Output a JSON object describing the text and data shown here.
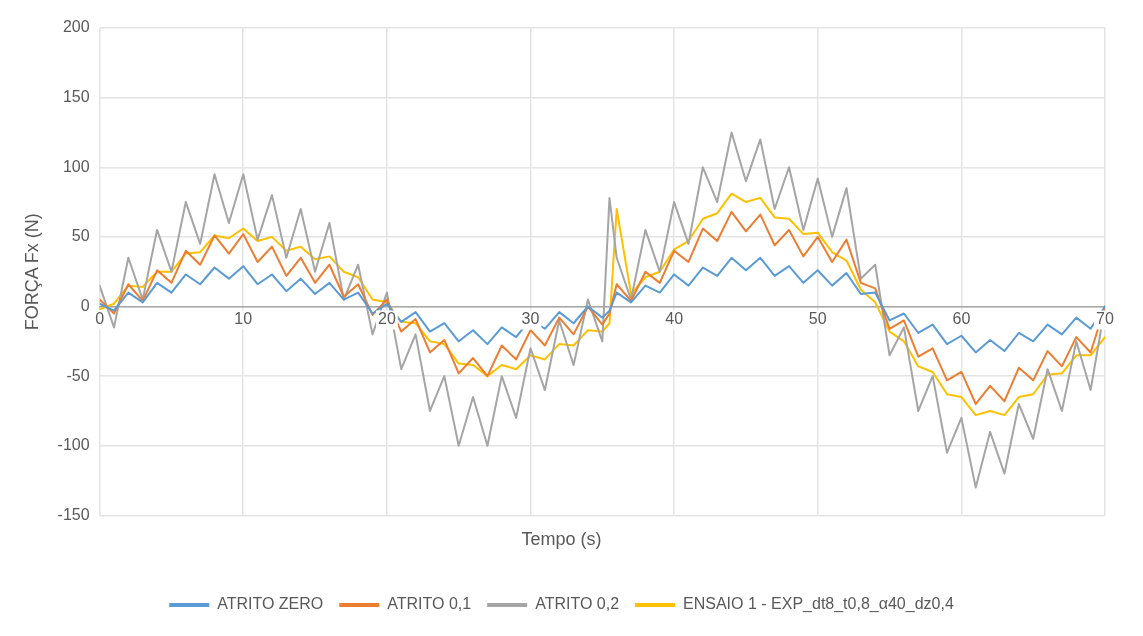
{
  "chart_data": {
    "type": "line",
    "xlabel": "Tempo (s)",
    "ylabel": "FORÇA Fx (N)",
    "x": [
      0,
      1,
      2,
      3,
      4,
      5,
      6,
      7,
      8,
      9,
      10,
      11,
      12,
      13,
      14,
      15,
      16,
      17,
      18,
      19,
      20,
      21,
      22,
      23,
      24,
      25,
      26,
      27,
      28,
      29,
      30,
      31,
      32,
      33,
      34,
      35,
      35.5,
      36,
      37,
      38,
      39,
      40,
      41,
      42,
      43,
      44,
      45,
      46,
      47,
      48,
      49,
      50,
      51,
      52,
      53,
      54,
      55,
      56,
      57,
      58,
      59,
      60,
      61,
      62,
      63,
      64,
      65,
      66,
      67,
      68,
      69,
      70
    ],
    "series": [
      {
        "name": "ATRITO ZERO",
        "color": "#5b9bd5",
        "values": [
          2,
          -3,
          10,
          3,
          17,
          10,
          23,
          16,
          28,
          20,
          29,
          16,
          23,
          11,
          20,
          9,
          17,
          5,
          10,
          -5,
          2,
          -11,
          -4,
          -18,
          -12,
          -25,
          -17,
          -27,
          -15,
          -22,
          -9,
          -16,
          -4,
          -12,
          0,
          -8,
          -3,
          10,
          3,
          15,
          10,
          23,
          15,
          28,
          22,
          35,
          26,
          35,
          22,
          29,
          17,
          26,
          15,
          24,
          9,
          10,
          -10,
          -5,
          -19,
          -13,
          -27,
          -21,
          -33,
          -24,
          -32,
          -19,
          -25,
          -13,
          -20,
          -8,
          -16,
          0
        ]
      },
      {
        "name": "ATRITO 0,1",
        "color": "#ed7d31",
        "values": [
          5,
          -5,
          16,
          4,
          26,
          17,
          40,
          30,
          51,
          38,
          52,
          32,
          43,
          22,
          35,
          17,
          30,
          7,
          16,
          -6,
          5,
          -18,
          -9,
          -33,
          -24,
          -48,
          -37,
          -50,
          -28,
          -38,
          -17,
          -28,
          -8,
          -20,
          0,
          -13,
          -5,
          16,
          4,
          25,
          17,
          40,
          32,
          56,
          47,
          68,
          54,
          66,
          44,
          55,
          36,
          50,
          32,
          48,
          17,
          13,
          -16,
          -10,
          -36,
          -30,
          -53,
          -47,
          -70,
          -57,
          -68,
          -44,
          -53,
          -32,
          -43,
          -22,
          -33,
          0
        ]
      },
      {
        "name": "ATRITO 0,2",
        "color": "#a5a5a5",
        "values": [
          15,
          -15,
          35,
          5,
          55,
          25,
          75,
          45,
          95,
          60,
          95,
          48,
          80,
          35,
          70,
          25,
          60,
          5,
          30,
          -20,
          10,
          -45,
          -20,
          -75,
          -50,
          -100,
          -65,
          -100,
          -50,
          -80,
          -30,
          -60,
          -10,
          -42,
          5,
          -25,
          78,
          35,
          5,
          55,
          25,
          75,
          45,
          100,
          75,
          125,
          90,
          120,
          70,
          100,
          55,
          92,
          50,
          85,
          20,
          30,
          -35,
          -15,
          -75,
          -50,
          -105,
          -80,
          -130,
          -90,
          -120,
          -70,
          -95,
          -45,
          -75,
          -25,
          -60,
          0
        ]
      },
      {
        "name": "ENSAIO 1 - EXP_dt8_t0,8_α40_dz0,4",
        "color": "#ffc000",
        "values": [
          -2,
          2,
          15,
          14,
          25,
          25,
          38,
          39,
          51,
          49,
          56,
          47,
          50,
          40,
          43,
          34,
          36,
          25,
          21,
          5,
          3,
          -11,
          -12,
          -25,
          -27,
          -41,
          -42,
          -50,
          -42,
          -45,
          -35,
          -38,
          -27,
          -28,
          -17,
          -18,
          -12,
          70,
          9,
          21,
          25,
          41,
          47,
          63,
          67,
          81,
          75,
          78,
          64,
          63,
          52,
          53,
          39,
          33,
          12,
          3,
          -18,
          -25,
          -43,
          -47,
          -63,
          -65,
          -78,
          -75,
          -78,
          -65,
          -63,
          -49,
          -48,
          -35,
          -35,
          -22
        ]
      }
    ],
    "xlim": [
      0,
      70
    ],
    "xticks": [
      0,
      10,
      20,
      30,
      40,
      50,
      60,
      70
    ],
    "ylim": [
      -150,
      200
    ],
    "yticks": [
      -150,
      -100,
      -50,
      0,
      50,
      100,
      150,
      200
    ],
    "grid": true,
    "legend": "bottom",
    "marker": "none",
    "line_style": "solid"
  }
}
